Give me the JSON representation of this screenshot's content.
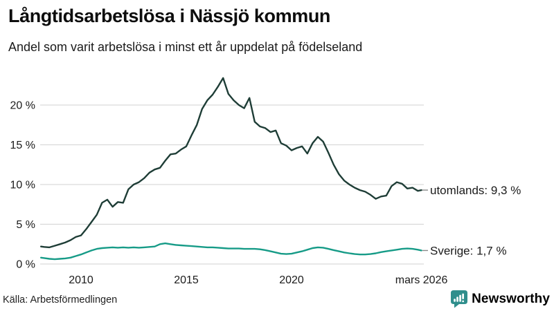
{
  "header": {
    "title": "Långtidsarbetslösa i Nässjö kommun",
    "subtitle": "Andel som varit arbetslösa i minst ett år uppdelat på födelseland"
  },
  "colors": {
    "grid": "#d9d9d9",
    "axis_text": "#1a1a1a",
    "label_text": "#1a1a1a",
    "label_tick": "#888888",
    "brand": "#2f8e8c",
    "series_foreign": "#1e3d36",
    "series_sweden": "#169b87"
  },
  "chart_data": {
    "type": "line",
    "title": "Långtidsarbetslösa i Nässjö kommun",
    "subtitle": "Andel som varit arbetslösa i minst ett år uppdelat på födelseland",
    "xlabel": "",
    "ylabel": "",
    "ylim": [
      0,
      24.2
    ],
    "grid": "horizontal",
    "legend_position": "end-of-line-labels",
    "yticks": [
      {
        "value": 0,
        "label": "0 %"
      },
      {
        "value": 5,
        "label": "5 %"
      },
      {
        "value": 10,
        "label": "10 %"
      },
      {
        "value": 15,
        "label": "15 %"
      },
      {
        "value": 20,
        "label": "20 %"
      }
    ],
    "xticks": [
      {
        "value": 2010,
        "label": "2010"
      },
      {
        "value": 2015,
        "label": "2015"
      },
      {
        "value": 2020,
        "label": "2020"
      },
      {
        "value": 2026.17,
        "label": "mars 2026"
      }
    ],
    "x": [
      2008.1,
      2008.25,
      2008.5,
      2008.75,
      2009,
      2009.25,
      2009.5,
      2009.75,
      2010,
      2010.25,
      2010.5,
      2010.75,
      2011,
      2011.25,
      2011.5,
      2011.75,
      2012,
      2012.25,
      2012.5,
      2012.75,
      2013,
      2013.25,
      2013.5,
      2013.75,
      2014,
      2014.25,
      2014.5,
      2014.75,
      2015,
      2015.25,
      2015.5,
      2015.75,
      2016,
      2016.25,
      2016.5,
      2016.75,
      2017,
      2017.25,
      2017.5,
      2017.75,
      2018,
      2018.25,
      2018.5,
      2018.75,
      2019,
      2019.25,
      2019.5,
      2019.75,
      2020,
      2020.25,
      2020.5,
      2020.75,
      2021,
      2021.25,
      2021.5,
      2021.75,
      2022,
      2022.25,
      2022.5,
      2022.75,
      2023,
      2023.25,
      2023.5,
      2023.75,
      2024,
      2024.25,
      2024.5,
      2024.75,
      2025,
      2025.25,
      2025.5,
      2025.75,
      2026,
      2026.17
    ],
    "series": [
      {
        "name": "utomlands",
        "end_label": "utomlands: 9,3 %",
        "end_value_text": "9,3 %",
        "color": "#1e3d36",
        "values": [
          2.2,
          2.15,
          2.1,
          2.3,
          2.5,
          2.7,
          3.0,
          3.4,
          3.6,
          4.4,
          5.3,
          6.2,
          7.7,
          8.1,
          7.2,
          7.8,
          7.7,
          9.4,
          10.0,
          10.3,
          10.8,
          11.5,
          11.9,
          12.1,
          13.0,
          13.8,
          13.9,
          14.4,
          14.8,
          16.2,
          17.5,
          19.5,
          20.6,
          21.3,
          22.3,
          23.4,
          21.4,
          20.6,
          20.0,
          19.6,
          20.9,
          17.9,
          17.3,
          17.1,
          16.6,
          16.8,
          15.2,
          14.9,
          14.3,
          14.6,
          14.8,
          13.9,
          15.2,
          16.0,
          15.4,
          14.0,
          12.5,
          11.3,
          10.5,
          10.0,
          9.6,
          9.3,
          9.1,
          8.7,
          8.2,
          8.5,
          8.6,
          9.8,
          10.3,
          10.1,
          9.5,
          9.6,
          9.2,
          9.3
        ]
      },
      {
        "name": "Sverige",
        "end_label": "Sverige: 1,7 %",
        "end_value_text": "1,7 %",
        "color": "#169b87",
        "values": [
          0.8,
          0.75,
          0.65,
          0.6,
          0.65,
          0.7,
          0.8,
          1.0,
          1.2,
          1.45,
          1.7,
          1.9,
          2.0,
          2.05,
          2.1,
          2.05,
          2.1,
          2.05,
          2.1,
          2.05,
          2.1,
          2.15,
          2.2,
          2.5,
          2.6,
          2.5,
          2.4,
          2.35,
          2.3,
          2.25,
          2.2,
          2.15,
          2.1,
          2.1,
          2.05,
          2.0,
          1.95,
          1.95,
          1.95,
          1.9,
          1.9,
          1.9,
          1.85,
          1.75,
          1.6,
          1.45,
          1.3,
          1.25,
          1.3,
          1.45,
          1.6,
          1.8,
          2.0,
          2.1,
          2.05,
          1.9,
          1.75,
          1.6,
          1.45,
          1.35,
          1.25,
          1.2,
          1.2,
          1.25,
          1.35,
          1.5,
          1.6,
          1.7,
          1.8,
          1.9,
          1.95,
          1.9,
          1.8,
          1.7
        ]
      }
    ]
  },
  "footer": {
    "source": "Källa: Arbetsförmedlingen",
    "brand": "Newsworthy"
  }
}
